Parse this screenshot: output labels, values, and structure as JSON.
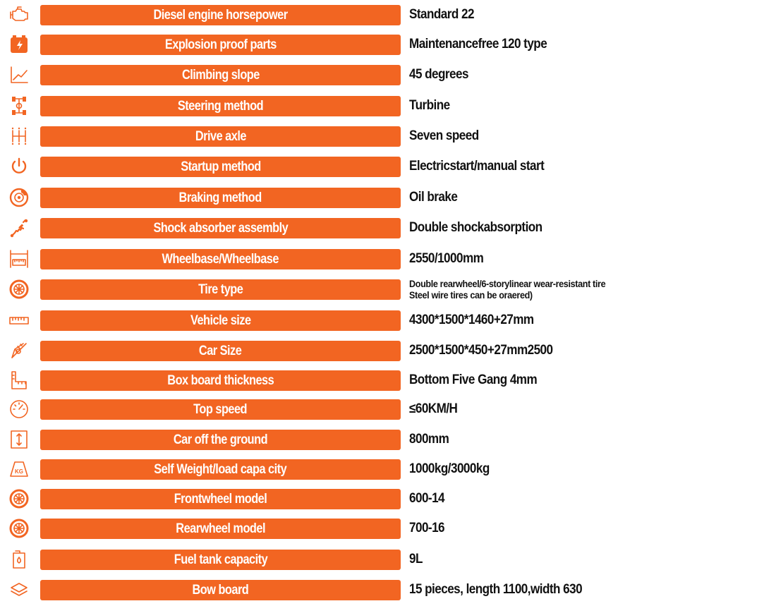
{
  "accent_color": "#f26522",
  "rows": [
    {
      "icon": "engine-icon",
      "label": "Diesel engine horsepower",
      "value": "Standard 22"
    },
    {
      "icon": "battery-icon",
      "label": "Explosion proof parts",
      "value": "Maintenancefree 120 type"
    },
    {
      "icon": "slope-chart-icon",
      "label": "Climbing slope",
      "value": "45 degrees"
    },
    {
      "icon": "steering-axle-icon",
      "label": "Steering method",
      "value": "Turbine"
    },
    {
      "icon": "gear-shift-icon",
      "label": "Drive axle",
      "value": "Seven speed"
    },
    {
      "icon": "power-icon",
      "label": "Startup method",
      "value": "Electricstart/manual start"
    },
    {
      "icon": "brake-disc-icon",
      "label": "Braking method",
      "value": "Oil brake"
    },
    {
      "icon": "shock-absorber-icon",
      "label": "Shock absorber assembly",
      "value": "Double shockabsorption"
    },
    {
      "icon": "wheelbase-ruler-icon",
      "label": "Wheelbase/Wheelbase",
      "value": "2550/1000mm"
    },
    {
      "icon": "tire-icon",
      "label": "Tire type",
      "value_lines": [
        "Double rearwheel/6-storylinear wear-resistant tire",
        "Steel wire tires can be oraered)"
      ]
    },
    {
      "icon": "ruler-icon",
      "label": "Vehicle size",
      "value": "4300*1500*1460+27mm"
    },
    {
      "icon": "protractor-icon",
      "label": "Car Size",
      "value": "2500*1500*450+27mm2500"
    },
    {
      "icon": "thickness-icon",
      "label": "Box board thickness",
      "value": "Bottom Five Gang 4mm"
    },
    {
      "icon": "speedometer-icon",
      "label": "Top speed",
      "value": "≤60KM/H"
    },
    {
      "icon": "ground-clearance-icon",
      "label": "Car off the ground",
      "value": "800mm"
    },
    {
      "icon": "weight-kg-icon",
      "label": "Self  Weight/load capa city",
      "value": "1000kg/3000kg",
      "icon_text": "KG"
    },
    {
      "icon": "front-wheel-icon",
      "label": "Frontwheel model",
      "value": "600-14"
    },
    {
      "icon": "rear-wheel-icon",
      "label": "Rearwheel model",
      "value": "700-16"
    },
    {
      "icon": "fuel-tank-icon",
      "label": "Fuel tank capacity",
      "value": "9L"
    },
    {
      "icon": "layers-icon",
      "label": "Bow board",
      "value": "15 pieces, length 1100,width 630"
    }
  ]
}
